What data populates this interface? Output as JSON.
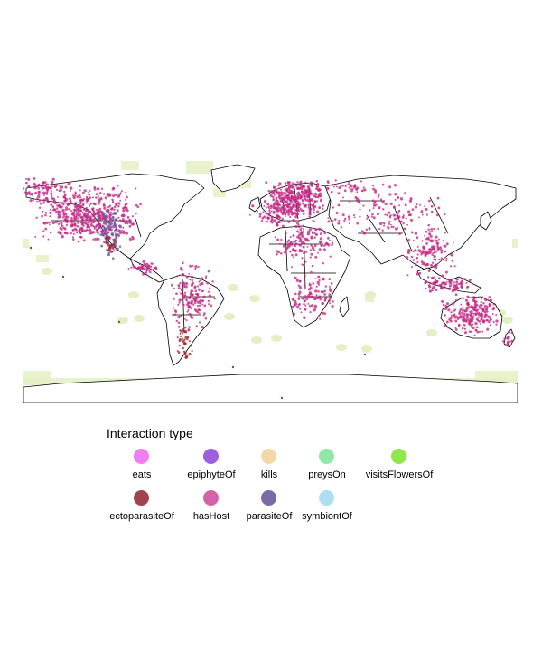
{
  "map": {
    "background": "#ffffff",
    "land_fill": "#ffffff",
    "border_color": "#000000",
    "habitat_fill": "#e4f0c4",
    "point_colors": {
      "hasHost": "#c42b86",
      "parasiteOf": "#6a5aa8",
      "ectoparasiteOf": "#9e2a36",
      "visitsFlowersOf": "#3c7a1c"
    }
  },
  "legend": {
    "title": "Interaction type",
    "items": [
      {
        "label": "eats",
        "color": "#f27df2"
      },
      {
        "label": "epiphyteOf",
        "color": "#9d5fe0"
      },
      {
        "label": "kills",
        "color": "#f2d9a6"
      },
      {
        "label": "preysOn",
        "color": "#8fe8a8"
      },
      {
        "label": "visitsFlowersOf",
        "color": "#8ee84a"
      },
      {
        "label": "ectoparasiteOf",
        "color": "#a0434f"
      },
      {
        "label": "hasHost",
        "color": "#d462a8"
      },
      {
        "label": "parasiteOf",
        "color": "#7a6aa8"
      },
      {
        "label": "symbiontOf",
        "color": "#ace0f0"
      }
    ]
  }
}
